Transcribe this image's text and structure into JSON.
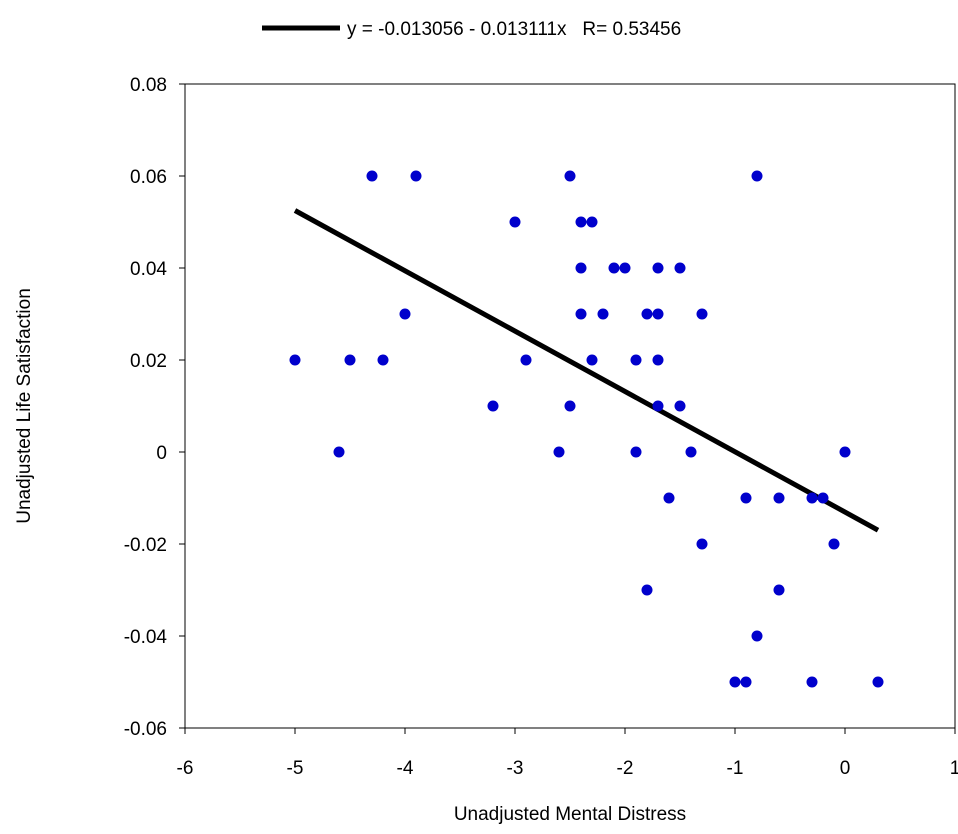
{
  "chart_data": {
    "type": "scatter",
    "title": "",
    "xlabel": "Unadjusted Mental Distress",
    "ylabel": "Unadjusted Life Satisfaction",
    "xlim": [
      -6,
      1
    ],
    "ylim": [
      -0.06,
      0.08
    ],
    "x_ticks": [
      -6,
      -5,
      -4,
      -3,
      -2,
      -1,
      0,
      1
    ],
    "x_tick_labels": [
      "-6",
      "-5",
      "-4",
      "-3",
      "-2",
      "-1",
      "0",
      "1"
    ],
    "y_ticks": [
      -0.06,
      -0.04,
      -0.02,
      0,
      0.02,
      0.04,
      0.06,
      0.08
    ],
    "y_tick_labels": [
      "-0.06",
      "-0.04",
      "-0.02",
      "0",
      "0.02",
      "0.04",
      "0.06",
      "0.08"
    ],
    "grid": false,
    "legend": {
      "placement": "top-center",
      "entry": "y = -0.013056 - 0.013111x   R= 0.53456"
    },
    "colors": {
      "points": "#0000cc",
      "fit_line": "#000000"
    },
    "series": [
      {
        "kind": "points",
        "x": [
          -5.0,
          -4.6,
          -4.5,
          -4.3,
          -4.2,
          -4.0,
          -3.9,
          -3.2,
          -3.0,
          -2.9,
          -2.6,
          -2.5,
          -2.5,
          -2.4,
          -2.4,
          -2.4,
          -2.3,
          -2.3,
          -2.2,
          -2.1,
          -2.0,
          -1.9,
          -1.9,
          -1.8,
          -1.8,
          -1.7,
          -1.7,
          -1.7,
          -1.7,
          -1.6,
          -1.5,
          -1.5,
          -1.4,
          -1.3,
          -1.3,
          -1.0,
          -0.9,
          -0.9,
          -0.8,
          -0.8,
          -0.6,
          -0.6,
          -0.3,
          -0.3,
          -0.2,
          -0.1,
          0.0,
          0.3
        ],
        "y": [
          0.02,
          0.0,
          0.02,
          0.06,
          0.02,
          0.03,
          0.06,
          0.01,
          0.05,
          0.02,
          0.0,
          0.01,
          0.06,
          0.05,
          0.04,
          0.03,
          0.05,
          0.02,
          0.03,
          0.04,
          0.04,
          0.02,
          0.0,
          0.03,
          -0.03,
          0.04,
          0.03,
          0.02,
          0.01,
          -0.01,
          0.04,
          0.01,
          0.0,
          0.03,
          -0.02,
          -0.05,
          -0.01,
          -0.05,
          0.06,
          -0.04,
          -0.01,
          -0.03,
          -0.01,
          -0.05,
          -0.01,
          -0.02,
          0.0,
          -0.05
        ]
      },
      {
        "kind": "fit_line",
        "x": [
          -5.0,
          0.3
        ],
        "y": [
          0.052499,
          -0.016989
        ]
      }
    ]
  }
}
